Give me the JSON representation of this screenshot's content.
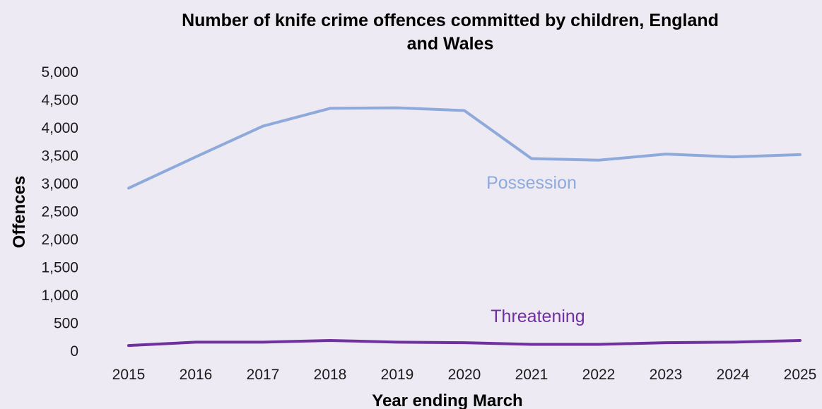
{
  "chart_data": {
    "type": "line",
    "title_lines": [
      "Number of knife crime offences committed by children, England",
      "and Wales"
    ],
    "xlabel": "Year ending March",
    "ylabel": "Offences",
    "categories": [
      "2015",
      "2016",
      "2017",
      "2018",
      "2019",
      "2020",
      "2021",
      "2022",
      "2023",
      "2024",
      "2025"
    ],
    "ylim": [
      0,
      5000
    ],
    "yticks": [
      {
        "value": 0,
        "label": "0"
      },
      {
        "value": 500,
        "label": "500"
      },
      {
        "value": 1000,
        "label": "1,000"
      },
      {
        "value": 1500,
        "label": "1,500"
      },
      {
        "value": 2000,
        "label": "2,000"
      },
      {
        "value": 2500,
        "label": "2,500"
      },
      {
        "value": 3000,
        "label": "3,000"
      },
      {
        "value": 3500,
        "label": "3,500"
      },
      {
        "value": 4000,
        "label": "4,000"
      },
      {
        "value": 4500,
        "label": "4,500"
      },
      {
        "value": 5000,
        "label": "5,000"
      }
    ],
    "grid": false,
    "legend": "none",
    "series": [
      {
        "name": "Possession",
        "color": "#8eaadb",
        "values": [
          2920,
          3480,
          4030,
          4350,
          4360,
          4310,
          3450,
          3420,
          3530,
          3480,
          3520
        ]
      },
      {
        "name": "Threatening",
        "color": "#7030a0",
        "values": [
          100,
          160,
          160,
          190,
          160,
          150,
          120,
          120,
          150,
          160,
          190
        ]
      }
    ]
  }
}
